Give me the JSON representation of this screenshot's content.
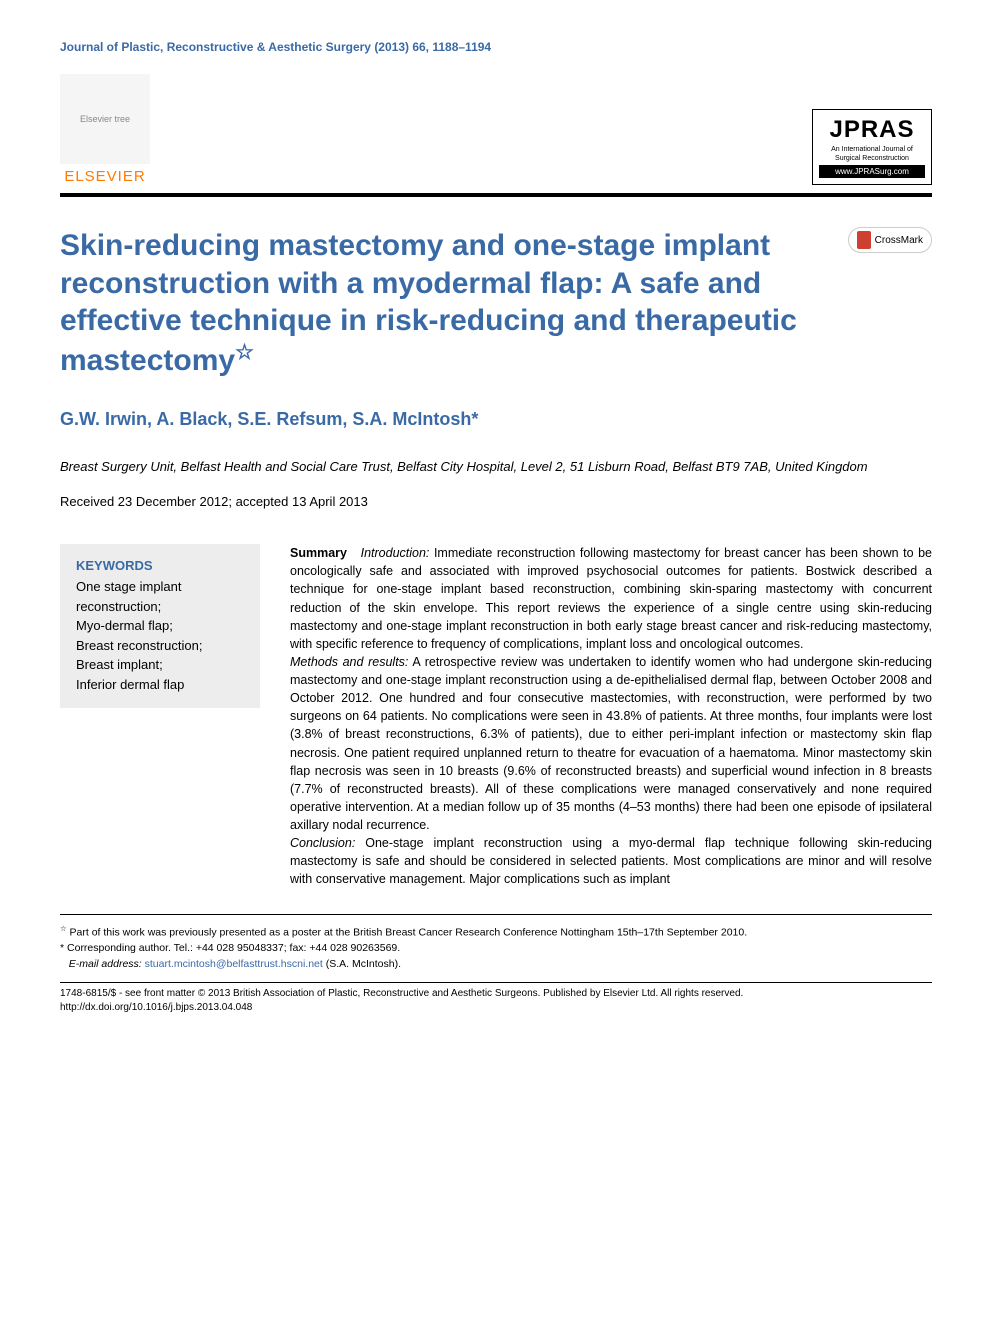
{
  "journal_header": "Journal of Plastic, Reconstructive & Aesthetic Surgery (2013) 66, 1188–1194",
  "publisher": {
    "name": "ELSEVIER",
    "logo_alt": "Elsevier tree"
  },
  "journal_logo": {
    "title": "JPRAS",
    "subtitle": "An International Journal of Surgical Reconstruction",
    "url": "www.JPRASurg.com"
  },
  "crossmark_label": "CrossMark",
  "article": {
    "title": "Skin-reducing mastectomy and one-stage implant reconstruction with a myodermal flap: A safe and effective technique in risk-reducing and therapeutic mastectomy",
    "title_note_symbol": "☆",
    "authors": "G.W. Irwin, A. Black, S.E. Refsum, S.A. McIntosh",
    "corresponding_symbol": "*",
    "affiliation": "Breast Surgery Unit, Belfast Health and Social Care Trust, Belfast City Hospital, Level 2, 51 Lisburn Road, Belfast BT9 7AB, United Kingdom",
    "dates": "Received 23 December 2012; accepted 13 April 2013"
  },
  "keywords": {
    "heading": "KEYWORDS",
    "items": "One stage implant reconstruction;\nMyo-dermal flap;\nBreast reconstruction;\nBreast implant;\nInferior dermal flap"
  },
  "abstract": {
    "summary_label": "Summary",
    "intro_label": "Introduction:",
    "intro_text": " Immediate reconstruction following mastectomy for breast cancer has been shown to be oncologically safe and associated with improved psychosocial outcomes for patients. Bostwick described a technique for one-stage implant based reconstruction, combining skin-sparing mastectomy with concurrent reduction of the skin envelope. This report reviews the experience of a single centre using skin-reducing mastectomy and one-stage implant reconstruction in both early stage breast cancer and risk-reducing mastectomy, with specific reference to frequency of complications, implant loss and oncological outcomes.",
    "methods_label": "Methods and results:",
    "methods_text": " A retrospective review was undertaken to identify women who had undergone skin-reducing mastectomy and one-stage implant reconstruction using a de-epithelialised dermal flap, between October 2008 and October 2012. One hundred and four consecutive mastectomies, with reconstruction, were performed by two surgeons on 64 patients. No complications were seen in 43.8% of patients. At three months, four implants were lost (3.8% of breast reconstructions, 6.3% of patients), due to either peri-implant infection or mastectomy skin flap necrosis. One patient required unplanned return to theatre for evacuation of a haematoma. Minor mastectomy skin flap necrosis was seen in 10 breasts (9.6% of reconstructed breasts) and superficial wound infection in 8 breasts (7.7% of reconstructed breasts). All of these complications were managed conservatively and none required operative intervention. At a median follow up of 35 months (4–53 months) there had been one episode of ipsilateral axillary nodal recurrence.",
    "conclusion_label": "Conclusion:",
    "conclusion_text": " One-stage implant reconstruction using a myo-dermal flap technique following skin-reducing mastectomy is safe and should be considered in selected patients. Most complications are minor and will resolve with conservative management. Major complications such as implant"
  },
  "footnotes": {
    "presentation": "Part of this work was previously presented as a poster at the British Breast Cancer Research Conference Nottingham 15th–17th September 2010.",
    "corresponding": "Corresponding author. Tel.: +44 028 95048337; fax: +44 028 90263569.",
    "email_label": "E-mail address:",
    "email": "stuart.mcintosh@belfasttrust.hscni.net",
    "email_author": "(S.A. McIntosh)."
  },
  "copyright": {
    "line1": "1748-6815/$ - see front matter © 2013 British Association of Plastic, Reconstructive and Aesthetic Surgeons. Published by Elsevier Ltd. All rights reserved.",
    "doi": "http://dx.doi.org/10.1016/j.bjps.2013.04.048"
  },
  "colors": {
    "brand_blue": "#3a6aa5",
    "elsevier_orange": "#ff7a00",
    "keywords_bg": "#ededee",
    "text": "#000000",
    "background": "#ffffff"
  },
  "typography": {
    "title_fontsize": 30,
    "authors_fontsize": 18,
    "body_fontsize": 12.5,
    "footnote_fontsize": 10.5
  }
}
